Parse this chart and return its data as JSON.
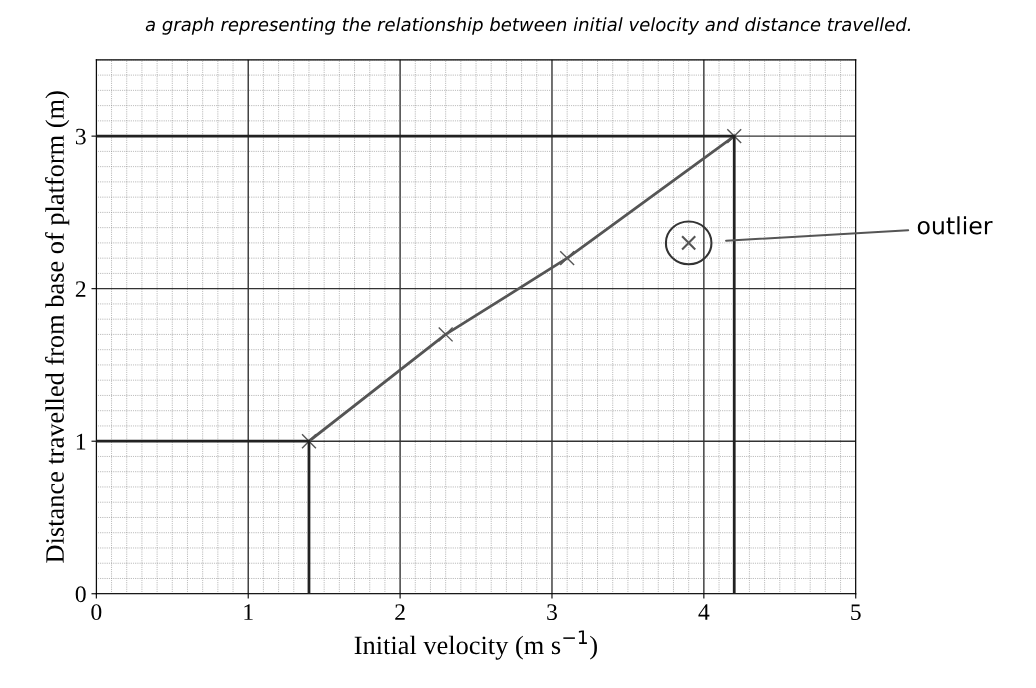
{
  "chart_data": {
    "type": "line",
    "title": "a graph representing the relationship between initial velocity and distance travelled.",
    "xlabel": "Initial velocity (m s$^{−1}$)",
    "ylabel": "Distance travelled from base of platform (m)",
    "xlim": [
      0,
      5
    ],
    "ylim": [
      0,
      3.5
    ],
    "xticks": [
      0,
      1,
      2,
      3,
      4,
      5
    ],
    "yticks": [
      0,
      1,
      2,
      3
    ],
    "grid": true,
    "series": [
      {
        "color": "#555555",
        "marker": "cross",
        "x": [
          1.4,
          2.3,
          3.1,
          4.2
        ],
        "values": [
          1.0,
          1.7,
          2.2,
          3.0
        ]
      },
      {
        "type": "scatter",
        "color": "#555555",
        "marker": "cross",
        "x": [
          3.9
        ],
        "values": [
          2.3
        ]
      },
      {
        "color": "#222222",
        "marker": "none",
        "x": [
          0,
          1.4,
          1.4
        ],
        "values": [
          1.0,
          1.0,
          0
        ]
      },
      {
        "color": "#222222",
        "marker": "none",
        "x": [
          0,
          4.2,
          4.2
        ],
        "values": [
          3.0,
          3.0,
          0
        ]
      }
    ],
    "annotations": [
      "outlier"
    ]
  }
}
